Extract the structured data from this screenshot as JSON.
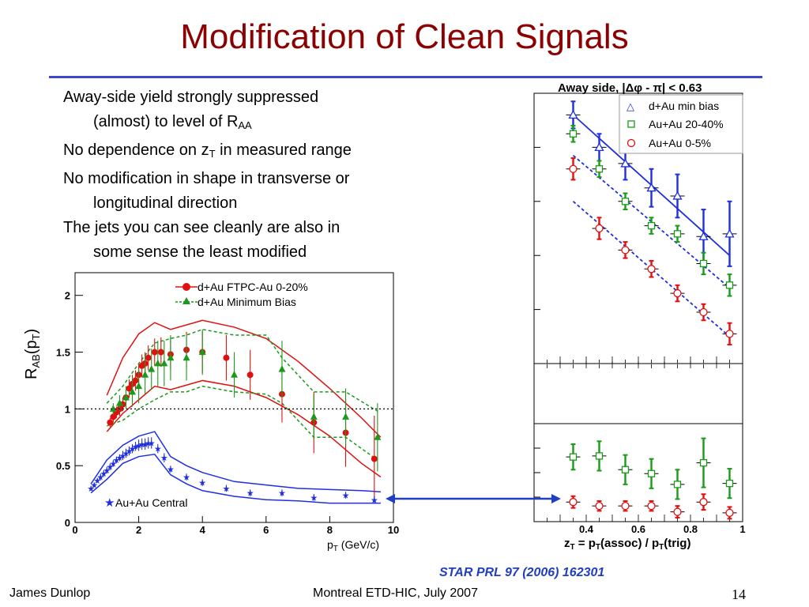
{
  "slide": {
    "title": "Modification of Clean Signals",
    "bullets": [
      {
        "pre": "Away-side yield strongly suppressed",
        "sub": "",
        "post": ""
      },
      {
        "pre": "(almost) to level of R",
        "sub": "AA",
        "post": ""
      },
      {
        "pre": "No dependence on z",
        "sub": "T",
        "post": " in measured range"
      },
      {
        "pre": "No modification in shape in transverse or",
        "sub": "",
        "post": ""
      },
      {
        "pre": "longitudinal direction",
        "sub": "",
        "post": ""
      },
      {
        "pre": "The jets you can see cleanly are also in",
        "sub": "",
        "post": ""
      },
      {
        "pre": "some sense the least modified",
        "sub": "",
        "post": ""
      }
    ],
    "reference": "STAR PRL 97 (2006) 162301",
    "footer_left": "James Dunlop",
    "footer_center": "Montreal ETD-HIC, July 2007",
    "page_number": "14"
  },
  "colors": {
    "title": "#8b0000",
    "rule": "#3f48cc",
    "arrow": "#1f3fbf",
    "red": "#e01010",
    "green": "#1a9a1a",
    "blue": "#1f2fdf"
  },
  "chart_data": [
    {
      "type": "scatter",
      "title": "",
      "xlabel": "p_T (GeV/c)",
      "ylabel": "R_AB(p_T)",
      "xlim": [
        0,
        10
      ],
      "ylim": [
        0,
        2.2
      ],
      "x_ticks": [
        "0",
        "2",
        "4",
        "6",
        "8",
        "10"
      ],
      "y_ticks": [
        "0",
        "0.5",
        "1",
        "1.5",
        "2"
      ],
      "reference_line": 1,
      "legend": [
        "d+Au FTPC-Au 0-20%",
        "d+Au Minimum Bias"
      ],
      "annotation": "Au+Au Central",
      "series": [
        {
          "name": "d+Au FTPC-Au 0-20%",
          "color": "#e01010",
          "marker": "circle",
          "x": [
            1.1,
            1.2,
            1.3,
            1.4,
            1.5,
            1.6,
            1.7,
            1.8,
            1.9,
            2.0,
            2.1,
            2.2,
            2.3,
            2.5,
            2.7,
            3.0,
            3.5,
            4.0,
            4.75,
            5.5,
            6.5,
            7.5,
            8.5,
            9.4
          ],
          "y": [
            0.88,
            0.93,
            0.97,
            1.0,
            1.04,
            1.1,
            1.18,
            1.22,
            1.25,
            1.3,
            1.38,
            1.4,
            1.45,
            1.5,
            1.5,
            1.48,
            1.52,
            1.5,
            1.45,
            1.3,
            1.13,
            0.88,
            0.79,
            0.56
          ],
          "err": [
            0.04,
            0.05,
            0.05,
            0.06,
            0.06,
            0.07,
            0.08,
            0.08,
            0.09,
            0.09,
            0.1,
            0.1,
            0.11,
            0.12,
            0.13,
            0.14,
            0.16,
            0.18,
            0.2,
            0.22,
            0.25,
            0.27,
            0.3,
            0.38
          ]
        },
        {
          "name": "d+Au Minimum Bias",
          "color": "#1a9a1a",
          "marker": "triangle",
          "x": [
            1.2,
            1.4,
            1.6,
            1.8,
            2.0,
            2.2,
            2.4,
            2.6,
            2.8,
            3.0,
            3.5,
            4.0,
            5.0,
            6.5,
            7.5,
            8.5,
            9.5
          ],
          "y": [
            1.0,
            1.05,
            1.1,
            1.15,
            1.2,
            1.3,
            1.35,
            1.4,
            1.4,
            1.45,
            1.45,
            1.5,
            1.3,
            1.35,
            0.93,
            0.93,
            0.75
          ],
          "err": [
            0.05,
            0.07,
            0.1,
            0.13,
            0.15,
            0.17,
            0.18,
            0.2,
            0.2,
            0.2,
            0.2,
            0.2,
            0.2,
            0.25,
            0.2,
            0.25,
            0.3
          ]
        },
        {
          "name": "Au+Au Central",
          "color": "#1f2fdf",
          "marker": "star",
          "x": [
            0.5,
            0.6,
            0.7,
            0.8,
            0.9,
            1.0,
            1.1,
            1.2,
            1.3,
            1.4,
            1.5,
            1.6,
            1.7,
            1.8,
            1.9,
            2.0,
            2.1,
            2.2,
            2.3,
            2.4,
            2.6,
            2.8,
            3.0,
            3.5,
            4.0,
            4.75,
            5.5,
            6.5,
            7.5,
            8.5,
            9.4
          ],
          "y": [
            0.3,
            0.33,
            0.37,
            0.4,
            0.43,
            0.46,
            0.49,
            0.52,
            0.55,
            0.57,
            0.59,
            0.61,
            0.63,
            0.65,
            0.67,
            0.68,
            0.69,
            0.69,
            0.7,
            0.7,
            0.65,
            0.57,
            0.47,
            0.4,
            0.35,
            0.3,
            0.26,
            0.26,
            0.22,
            0.24,
            0.2
          ],
          "err": [
            0.02,
            0.02,
            0.02,
            0.03,
            0.03,
            0.03,
            0.03,
            0.03,
            0.03,
            0.03,
            0.04,
            0.04,
            0.04,
            0.04,
            0.04,
            0.05,
            0.05,
            0.05,
            0.05,
            0.05,
            0.04,
            0.04,
            0.03,
            0.03,
            0.03,
            0.03,
            0.03,
            0.03,
            0.03,
            0.03,
            0.03
          ]
        }
      ],
      "bands": [
        {
          "color": "#e01010",
          "style": "solid",
          "upper": {
            "x": [
              1.0,
              1.5,
              2.0,
              2.5,
              3.0,
              4.0,
              5.0,
              6.0,
              7.0,
              8.0,
              9.0,
              9.6
            ],
            "y": [
              1.12,
              1.45,
              1.66,
              1.76,
              1.7,
              1.78,
              1.72,
              1.62,
              1.42,
              1.18,
              0.92,
              0.75
            ]
          },
          "lower": {
            "x": [
              1.0,
              1.5,
              2.0,
              2.5,
              3.0,
              4.0,
              5.0,
              6.0,
              7.0,
              8.0,
              9.0,
              9.6
            ],
            "y": [
              0.8,
              0.96,
              1.08,
              1.2,
              1.17,
              1.25,
              1.2,
              1.1,
              0.95,
              0.76,
              0.52,
              0.4
            ]
          }
        },
        {
          "color": "#1a9a1a",
          "style": "dashed",
          "upper": {
            "x": [
              1.0,
              1.5,
              2.0,
              2.5,
              3.0,
              3.5,
              4.0,
              5.0,
              6.0,
              6.5,
              7.5,
              8.5,
              9.5
            ],
            "y": [
              1.05,
              1.2,
              1.4,
              1.58,
              1.62,
              1.65,
              1.7,
              1.65,
              1.65,
              1.45,
              1.15,
              1.15,
              0.98
            ]
          },
          "lower": {
            "x": [
              1.0,
              1.5,
              2.0,
              2.5,
              3.0,
              3.5,
              4.0,
              5.0,
              6.0,
              6.5,
              7.5,
              8.5,
              9.5
            ],
            "y": [
              0.85,
              0.9,
              1.0,
              1.08,
              1.15,
              1.15,
              1.2,
              1.15,
              1.13,
              1.05,
              0.75,
              0.75,
              0.55
            ]
          }
        },
        {
          "color": "#1f2fdf",
          "style": "solid",
          "upper": {
            "x": [
              0.5,
              1.0,
              1.5,
              2.0,
              2.5,
              3.0,
              3.5,
              4.0,
              5.0,
              6.0,
              7.0,
              8.0,
              9.0,
              9.6
            ],
            "y": [
              0.34,
              0.55,
              0.68,
              0.76,
              0.8,
              0.58,
              0.5,
              0.44,
              0.36,
              0.33,
              0.3,
              0.29,
              0.28,
              0.27
            ]
          },
          "lower": {
            "x": [
              0.5,
              1.0,
              1.5,
              2.0,
              2.5,
              3.0,
              3.5,
              4.0,
              5.0,
              6.0,
              7.0,
              8.0,
              9.0,
              9.6
            ],
            "y": [
              0.26,
              0.38,
              0.52,
              0.58,
              0.6,
              0.42,
              0.34,
              0.28,
              0.23,
              0.2,
              0.19,
              0.17,
              0.17,
              0.17
            ]
          }
        }
      ]
    },
    {
      "type": "scatter",
      "title": "Away side, |Δφ - π| < 0.63",
      "xlabel": "z_T = p_T(assoc) / p_T(trig)",
      "ylabel": "",
      "xlim": [
        0.2,
        1.0
      ],
      "x_ticks": [
        "0.4",
        "0.6",
        "0.8",
        "1"
      ],
      "legend": [
        "d+Au min bias",
        "Au+Au 20-40%",
        "Au+Au 0-5%"
      ],
      "upper_panel": {
        "ylim": [
          0,
          1
        ],
        "series": [
          {
            "name": "d+Au min bias",
            "color": "#1f2fdf",
            "marker": "open-triangle",
            "x": [
              0.35,
              0.45,
              0.55,
              0.65,
              0.75,
              0.85,
              0.95
            ],
            "y": [
              0.92,
              0.8,
              0.74,
              0.65,
              0.62,
              0.47,
              0.48
            ],
            "err": [
              0.05,
              0.05,
              0.06,
              0.07,
              0.08,
              0.1,
              0.12
            ]
          },
          {
            "name": "Au+Au 20-40%",
            "color": "#1a9a1a",
            "marker": "open-square",
            "x": [
              0.35,
              0.45,
              0.55,
              0.65,
              0.75,
              0.85,
              0.95
            ],
            "y": [
              0.85,
              0.72,
              0.6,
              0.51,
              0.48,
              0.37,
              0.29
            ],
            "err": [
              0.03,
              0.03,
              0.03,
              0.03,
              0.03,
              0.04,
              0.04
            ]
          },
          {
            "name": "Au+Au 0-5%",
            "color": "#e01010",
            "marker": "open-circle",
            "x": [
              0.35,
              0.45,
              0.55,
              0.65,
              0.75,
              0.85,
              0.95
            ],
            "y": [
              0.72,
              0.5,
              0.42,
              0.35,
              0.26,
              0.19,
              0.11
            ],
            "err": [
              0.04,
              0.04,
              0.03,
              0.03,
              0.03,
              0.03,
              0.04
            ]
          }
        ],
        "fits": [
          {
            "color": "#1f2fdf",
            "style": "solid",
            "x": [
              0.35,
              0.95
            ],
            "y": [
              0.92,
              0.4
            ]
          },
          {
            "color": "#1f2fdf",
            "style": "dashed",
            "x": [
              0.35,
              0.95
            ],
            "y": [
              0.77,
              0.28
            ]
          },
          {
            "color": "#1f2fdf",
            "style": "dashed",
            "x": [
              0.35,
              0.95
            ],
            "y": [
              0.6,
              0.1
            ]
          }
        ]
      },
      "lower_panel": {
        "ylim": [
          0,
          1
        ],
        "series": [
          {
            "name": "Au+Au 20-40%",
            "color": "#1a9a1a",
            "marker": "open-square",
            "x": [
              0.35,
              0.45,
              0.55,
              0.65,
              0.75,
              0.85,
              0.95
            ],
            "y": [
              0.66,
              0.67,
              0.53,
              0.49,
              0.38,
              0.6,
              0.39
            ],
            "err": [
              0.13,
              0.15,
              0.15,
              0.15,
              0.15,
              0.25,
              0.15
            ]
          },
          {
            "name": "Au+Au 0-5%",
            "color": "#e01010",
            "marker": "open-circle",
            "x": [
              0.35,
              0.45,
              0.55,
              0.65,
              0.75,
              0.85,
              0.95
            ],
            "y": [
              0.2,
              0.16,
              0.16,
              0.16,
              0.1,
              0.2,
              0.09
            ],
            "err": [
              0.06,
              0.05,
              0.05,
              0.05,
              0.06,
              0.08,
              0.06
            ]
          }
        ]
      }
    }
  ]
}
